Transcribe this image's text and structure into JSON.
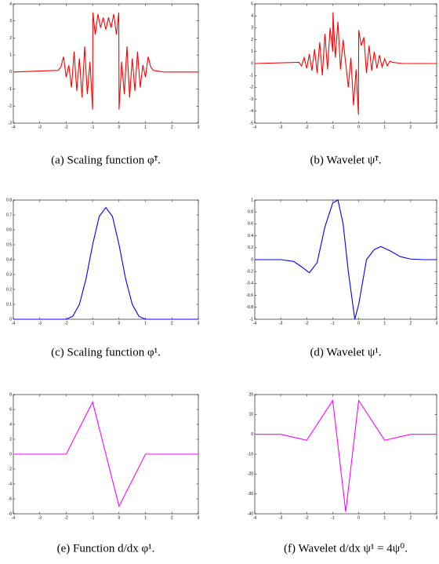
{
  "chart_data": [
    {
      "type": "line",
      "caption": "(a) Scaling function φ̃¹.",
      "x": [
        -4,
        -2.3,
        -2.2,
        -2.1,
        -2,
        -1.9,
        -1.8,
        -1.7,
        -1.6,
        -1.5,
        -1.4,
        -1.3,
        -1.2,
        -1.1,
        -1,
        -0.99,
        -0.9,
        -0.8,
        -0.7,
        -0.6,
        -0.5,
        -0.4,
        -0.3,
        -0.2,
        -0.1,
        -0.01,
        0,
        0.1,
        0.2,
        0.3,
        0.4,
        0.5,
        0.6,
        0.7,
        0.8,
        0.9,
        1,
        1.1,
        1.2,
        1.3,
        1.5,
        1.7,
        3
      ],
      "series": [
        {
          "color": "#ff0000",
          "values": [
            0,
            0.1,
            0.3,
            0.9,
            -0.3,
            0.4,
            -0.9,
            1.2,
            -1.1,
            0.8,
            -1.5,
            1.5,
            -1.3,
            0.6,
            -2.2,
            3.5,
            2.2,
            3.4,
            2.6,
            3.2,
            2.5,
            3.2,
            2.6,
            3.4,
            2.2,
            3.5,
            -2.2,
            0.6,
            -1.3,
            1.5,
            -1.5,
            0.8,
            -1.1,
            1.2,
            -0.9,
            0.4,
            -0.3,
            0.9,
            0.3,
            0.1,
            0.05,
            0,
            0
          ]
        }
      ],
      "xlim": [
        -4,
        3
      ],
      "xticks": [
        -4,
        -3,
        -2,
        -1,
        0,
        1,
        2,
        3
      ],
      "ylim": [
        -3,
        4
      ],
      "yticks": [
        -3,
        -2,
        -1,
        0,
        1,
        2,
        3,
        4
      ]
    },
    {
      "type": "line",
      "caption": "(b) Wavelet ψ̃¹.",
      "x": [
        -4,
        -2.3,
        -2.2,
        -2.1,
        -2,
        -1.9,
        -1.8,
        -1.7,
        -1.6,
        -1.5,
        -1.4,
        -1.3,
        -1.2,
        -1.1,
        -1,
        -0.99,
        -0.9,
        -0.8,
        -0.7,
        -0.6,
        -0.5,
        -0.4,
        -0.3,
        -0.2,
        -0.1,
        -0.01,
        0,
        0.1,
        0.2,
        0.3,
        0.4,
        0.5,
        0.6,
        0.7,
        0.8,
        0.9,
        1,
        1.1,
        1.2,
        1.3,
        1.5,
        1.7,
        3
      ],
      "series": [
        {
          "color": "#ff0000",
          "values": [
            0,
            0.1,
            -0.2,
            0.5,
            -0.4,
            0.8,
            -0.6,
            1.2,
            -0.8,
            1.8,
            -1.0,
            2.5,
            -0.5,
            3.0,
            1.0,
            4.3,
            0.5,
            3.5,
            -0.5,
            2.0,
            0,
            -2.0,
            0.5,
            -3.5,
            -0.5,
            -4.3,
            2.8,
            1.5,
            2.2,
            -0.8,
            1.5,
            -0.6,
            1.0,
            -0.4,
            0.7,
            -0.3,
            0.4,
            -0.2,
            0.2,
            0.1,
            0.05,
            0,
            0
          ]
        }
      ],
      "xlim": [
        -4,
        3
      ],
      "xticks": [
        -4,
        -3,
        -2,
        -1,
        0,
        1,
        2,
        3
      ],
      "ylim": [
        -5,
        5
      ],
      "yticks": [
        -5,
        -4,
        -3,
        -2,
        -1,
        0,
        1,
        2,
        3,
        4,
        5
      ]
    },
    {
      "type": "line",
      "caption": "(c) Scaling function φ¹.",
      "x": [
        -4,
        -2,
        -1.75,
        -1.5,
        -1.25,
        -1,
        -0.75,
        -0.5,
        -0.25,
        0,
        0.25,
        0.5,
        0.75,
        1,
        3
      ],
      "series": [
        {
          "color": "#0000ff",
          "values": [
            0,
            0,
            0.02,
            0.1,
            0.27,
            0.5,
            0.69,
            0.75,
            0.69,
            0.5,
            0.27,
            0.1,
            0.02,
            0,
            0
          ]
        }
      ],
      "xlim": [
        -4,
        3
      ],
      "xticks": [
        -4,
        -3,
        -2,
        -1,
        0,
        1,
        2,
        3
      ],
      "ylim": [
        0,
        0.8
      ],
      "yticks": [
        0,
        0.1,
        0.2,
        0.3,
        0.4,
        0.5,
        0.6,
        0.7,
        0.8
      ]
    },
    {
      "type": "line",
      "caption": "(d) Wavelet ψ¹.",
      "x": [
        -4,
        -3,
        -2.5,
        -2.2,
        -1.9,
        -1.6,
        -1.3,
        -1,
        -0.8,
        -0.6,
        -0.4,
        -0.15,
        0,
        0.3,
        0.6,
        0.85,
        1.2,
        1.6,
        2,
        2.5,
        3
      ],
      "series": [
        {
          "color": "#0000ff",
          "values": [
            0,
            0,
            -0.03,
            -0.12,
            -0.22,
            -0.05,
            0.55,
            0.95,
            1,
            0.6,
            -0.2,
            -1,
            -0.75,
            0,
            0.17,
            0.22,
            0.15,
            0.05,
            0.01,
            0,
            0
          ]
        }
      ],
      "xlim": [
        -4,
        3
      ],
      "xticks": [
        -4,
        -3,
        -2,
        -1,
        0,
        1,
        2,
        3
      ],
      "ylim": [
        -1,
        1
      ],
      "yticks": [
        -1,
        -0.8,
        -0.6,
        -0.4,
        -0.2,
        0,
        0.2,
        0.4,
        0.6,
        0.8,
        1
      ]
    },
    {
      "type": "line",
      "caption": "(e) Function d/dx φ¹.",
      "x": [
        -4,
        -2,
        -1,
        0,
        1,
        3
      ],
      "series": [
        {
          "color": "#ff00ff",
          "values": [
            0,
            0,
            7,
            -7,
            0,
            0
          ]
        }
      ],
      "xlim": [
        -4,
        3
      ],
      "xticks": [
        -4,
        -3,
        -2,
        -1,
        0,
        1,
        2,
        3
      ],
      "ylim": [
        -8,
        8
      ],
      "yticks": [
        -8,
        -6,
        -4,
        -2,
        0,
        2,
        4,
        6,
        8
      ]
    },
    {
      "type": "line",
      "caption": "(f) Wavelet d/dx ψ¹ = 4ψ⁰.",
      "x": [
        -4,
        -3,
        -2,
        -1,
        -0.5,
        0,
        1,
        2,
        3
      ],
      "series": [
        {
          "color": "#ff00ff",
          "values": [
            0,
            0,
            -3,
            17,
            -39,
            17,
            -3,
            0,
            0
          ]
        }
      ],
      "xlim": [
        -4,
        3
      ],
      "xticks": [
        -4,
        -3,
        -2,
        -1,
        0,
        1,
        2,
        3
      ],
      "ylim": [
        -40,
        20
      ],
      "yticks": [
        -40,
        -30,
        -20,
        -10,
        0,
        10,
        20
      ]
    }
  ]
}
